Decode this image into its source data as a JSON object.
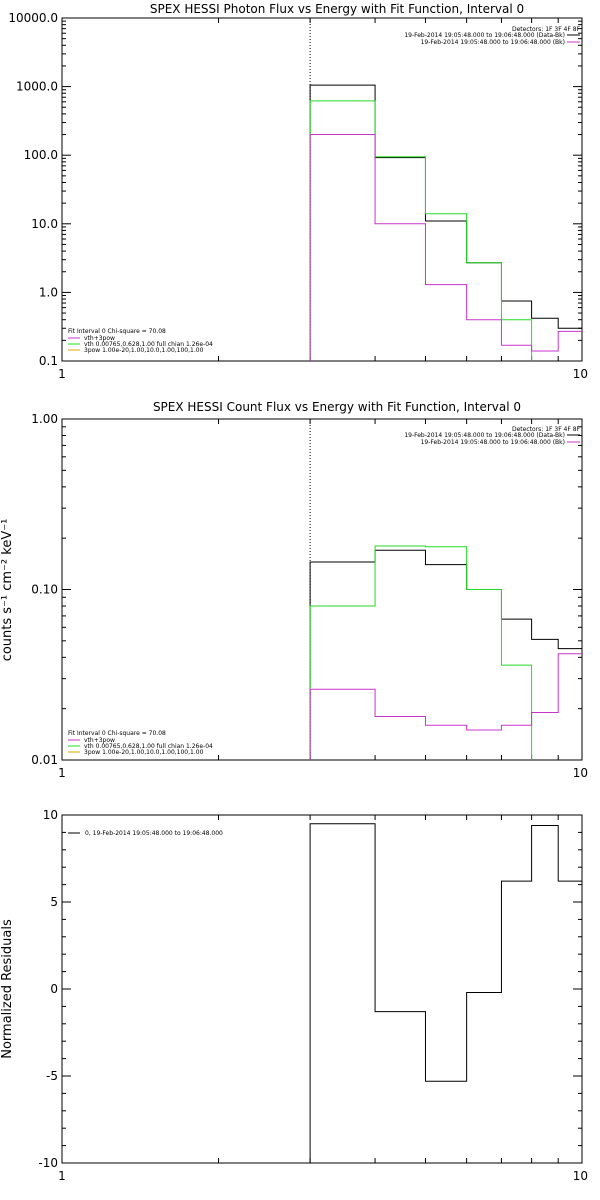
{
  "chart_data": [
    {
      "type": "line",
      "title": "SPEX HESSI Photon Flux vs Energy with Fit Function, Interval 0",
      "xscale": "log",
      "yscale": "log",
      "xlim": [
        1,
        10
      ],
      "ylim": [
        0.1,
        10000
      ],
      "xticks": [
        "1",
        "10"
      ],
      "yticks": [
        "0.1",
        "1.0",
        "10.0",
        "100.0",
        "1000.0",
        "10000.0"
      ],
      "ylabel": "",
      "vline_x": 3,
      "legend_top": [
        "Detectors: 1F 3F 4F 8F",
        "19-Feb-2014 19:05:48.000 to 19:06:48.000 (Data-Bk)",
        "19-Feb-2014 19:05:48.000 to 19:06:48.000 (Bk)"
      ],
      "legend_bottom": [
        "Fit Interval 0   Chi-square = 70.08",
        "vth+3pow",
        "vth 0.00765,0.628,1.00  full chian 1.26e-04",
        "3pow 1.00e-20,1.00,10.0,1.00,100,1.00"
      ],
      "series": [
        {
          "edges": [
            3,
            4,
            5,
            6,
            7,
            8,
            9,
            10
          ],
          "values": [
            1050,
            92,
            11,
            2.7,
            0.75,
            0.42,
            0.3
          ]
        },
        {
          "edges": [
            3,
            4,
            5,
            6,
            7,
            8
          ],
          "values": [
            620,
            95,
            14,
            2.7,
            0.4
          ]
        },
        {
          "edges": [
            3,
            4,
            5,
            6,
            7,
            8,
            9,
            10
          ],
          "values": [
            200,
            10,
            1.3,
            0.4,
            0.17,
            0.14,
            0.27
          ]
        }
      ]
    },
    {
      "type": "line",
      "title": "SPEX HESSI Count Flux vs Energy with Fit Function, Interval 0",
      "xscale": "log",
      "yscale": "log",
      "xlim": [
        1,
        10
      ],
      "ylim": [
        0.01,
        1
      ],
      "xticks": [
        "1",
        "10"
      ],
      "yticks": [
        "0.01",
        "0.10",
        "1.00"
      ],
      "ylabel": "counts s⁻¹ cm⁻² keV⁻¹",
      "vline_x": 3,
      "legend_top": [
        "Detectors: 1F 3F 4F 8F",
        "19-Feb-2014 19:05:48.000 to 19:06:48.000 (Data-Bk)",
        "19-Feb-2014 19:05:48.000 to 19:06:48.000 (Bk)"
      ],
      "legend_bottom": [
        "Fit Interval 0   Chi-square = 70.08",
        "vth+3pow",
        "vth 0.00765,0.628,1.00  full chian 1.26e-04",
        "3pow 1.00e-20,1.00,10.0,1.00,100,1.00"
      ],
      "series": [
        {
          "edges": [
            3,
            4,
            5,
            6,
            7,
            8,
            9,
            10
          ],
          "values": [
            0.145,
            0.17,
            0.14,
            0.1,
            0.067,
            0.051,
            0.045
          ]
        },
        {
          "edges": [
            3,
            4,
            5,
            6,
            7,
            8
          ],
          "values": [
            0.08,
            0.18,
            0.178,
            0.1,
            0.036
          ]
        },
        {
          "edges": [
            3,
            4,
            5,
            6,
            7,
            8,
            9,
            10
          ],
          "values": [
            0.026,
            0.018,
            0.016,
            0.015,
            0.016,
            0.019,
            0.042
          ]
        }
      ]
    },
    {
      "type": "line",
      "title": "",
      "xscale": "log",
      "yscale": "linear",
      "xlim": [
        1,
        10
      ],
      "ylim": [
        -10,
        10
      ],
      "xticks": [
        "1",
        "10"
      ],
      "yticks": [
        "-10",
        "-5",
        "0",
        "5",
        "10"
      ],
      "ylabel": "Normalized Residuals",
      "legend": "0, 19-Feb-2014 19:05:48.000 to 19:06:48.000",
      "series": [
        {
          "edges": [
            3,
            4,
            5,
            6,
            7,
            8,
            9,
            10
          ],
          "values": [
            9.5,
            -1.3,
            -5.3,
            -0.2,
            6.2,
            9.4,
            6.2
          ]
        }
      ]
    }
  ],
  "colors": {
    "series": [
      "#000000",
      "#22dd22",
      "#cc33cc"
    ],
    "legend_bottom": [
      "#000000",
      "#cc33cc",
      "#22dd22",
      "#ddaa00"
    ]
  }
}
